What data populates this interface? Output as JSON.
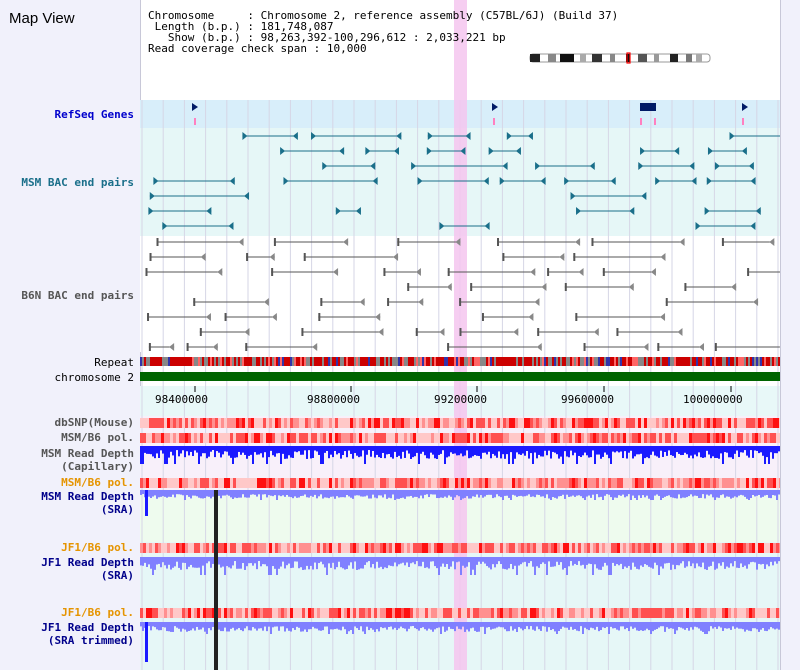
{
  "title": "Map View",
  "header": {
    "line1_key": "Chromosome",
    "line1_val": "Chromosome 2, reference assembly (C57BL/6J) (Build 37)",
    "line2_key": "Length (b.p.)",
    "line2_val": "181,748,087",
    "line3_key": "Show (b.p.)",
    "line3_val": "98,263,392-100,296,612 : 2,033,221 bp",
    "line4_key": "Read coverage check span",
    "line4_val": "10,000"
  },
  "tracks": {
    "refseq": "RefSeq Genes",
    "msm_bac": "MSM BAC end pairs",
    "b6n_bac": "B6N BAC end pairs",
    "repeat": "Repeat",
    "chromosome": "chromosome 2",
    "dbsnp": "dbSNP(Mouse)",
    "msm_b6_pol": "MSM/B6 pol.",
    "msm_read_cap_1": "MSM Read Depth",
    "msm_read_cap_2": "(Capillary)",
    "msm_b6_pol2": "MSM/B6 pol.",
    "msm_read_sra_1": "MSM Read Depth",
    "msm_read_sra_2": "(SRA)",
    "jf1_pol1": "JF1/B6 pol.",
    "jf1_read_sra_1": "JF1 Read Depth",
    "jf1_read_sra_2": "(SRA)",
    "jf1_pol2": "JF1/B6 pol.",
    "jf1_read_trim_1": "JF1 Read Depth",
    "jf1_read_trim_2": "(SRA trimmed)"
  },
  "axis": {
    "ticks": [
      "98400000",
      "98800000",
      "99200000",
      "99600000",
      "100000000"
    ]
  },
  "colors": {
    "refseq_bg": "#d8eefa",
    "msm_bac_bg": "#e6f7f7",
    "chromosome": "#006400",
    "highlight": "#f5c6ee",
    "read_depth_fill": "#8080ff",
    "read_depth_dark": "#1a1aff",
    "pol_red": "#ff3030",
    "orange": "#e59400"
  },
  "icons": [
    "chromosome-ideogram-icon",
    "gene-arrow-icon",
    "bac-end-arrow-icon"
  ]
}
